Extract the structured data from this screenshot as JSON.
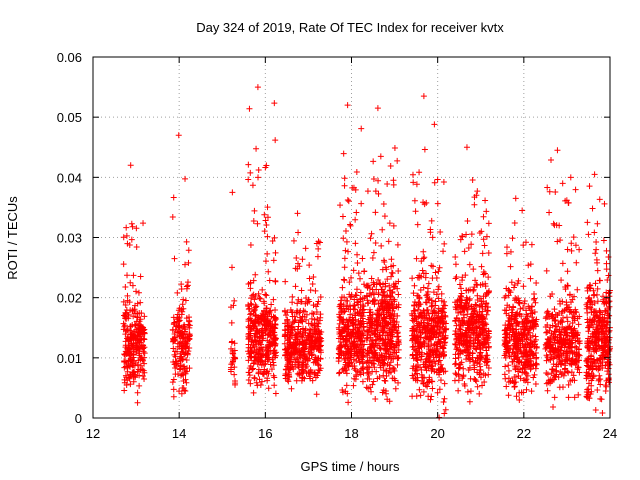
{
  "chart_data": {
    "type": "scatter",
    "title": "Day 324 of 2019, Rate Of TEC Index for receiver kvtx",
    "xlabel": "GPS time / hours",
    "ylabel": "ROTI / TECUs",
    "xlim": [
      12,
      24
    ],
    "ylim": [
      0,
      0.06
    ],
    "x_ticks": [
      "12",
      "14",
      "16",
      "18",
      "20",
      "22",
      "24"
    ],
    "y_ticks": [
      "0",
      "0.01",
      "0.02",
      "0.03",
      "0.04",
      "0.05",
      "0.06"
    ],
    "grid": true,
    "marker": "+",
    "color": "#ff0000",
    "series": [
      {
        "name": "ROTI",
        "clusters": [
          {
            "x_start": 12.7,
            "x_end": 13.2,
            "median": 0.012,
            "spread": 0.004,
            "count": 260,
            "peak": 0.042
          },
          {
            "x_start": 13.85,
            "x_end": 14.25,
            "median": 0.012,
            "spread": 0.004,
            "count": 180,
            "peak": 0.047
          },
          {
            "x_start": 15.2,
            "x_end": 15.3,
            "median": 0.009,
            "spread": 0.002,
            "count": 30,
            "peak": 0.0375
          },
          {
            "x_start": 15.6,
            "x_end": 16.25,
            "median": 0.013,
            "spread": 0.004,
            "count": 380,
            "peak": 0.055
          },
          {
            "x_start": 16.45,
            "x_end": 17.3,
            "median": 0.012,
            "spread": 0.0035,
            "count": 420,
            "peak": 0.034
          },
          {
            "x_start": 17.7,
            "x_end": 18.3,
            "median": 0.013,
            "spread": 0.004,
            "count": 360,
            "peak": 0.052
          },
          {
            "x_start": 18.35,
            "x_end": 19.1,
            "median": 0.014,
            "spread": 0.005,
            "count": 460,
            "peak": 0.0515
          },
          {
            "x_start": 19.4,
            "x_end": 20.2,
            "median": 0.013,
            "spread": 0.005,
            "count": 480,
            "peak": 0.0535
          },
          {
            "x_start": 20.4,
            "x_end": 21.2,
            "median": 0.014,
            "spread": 0.005,
            "count": 460,
            "peak": 0.045
          },
          {
            "x_start": 21.55,
            "x_end": 22.3,
            "median": 0.012,
            "spread": 0.004,
            "count": 400,
            "peak": 0.0365
          },
          {
            "x_start": 22.5,
            "x_end": 23.3,
            "median": 0.012,
            "spread": 0.004,
            "count": 380,
            "peak": 0.0445
          },
          {
            "x_start": 23.45,
            "x_end": 24.0,
            "median": 0.013,
            "spread": 0.005,
            "count": 360,
            "peak": 0.0405
          }
        ]
      }
    ]
  }
}
